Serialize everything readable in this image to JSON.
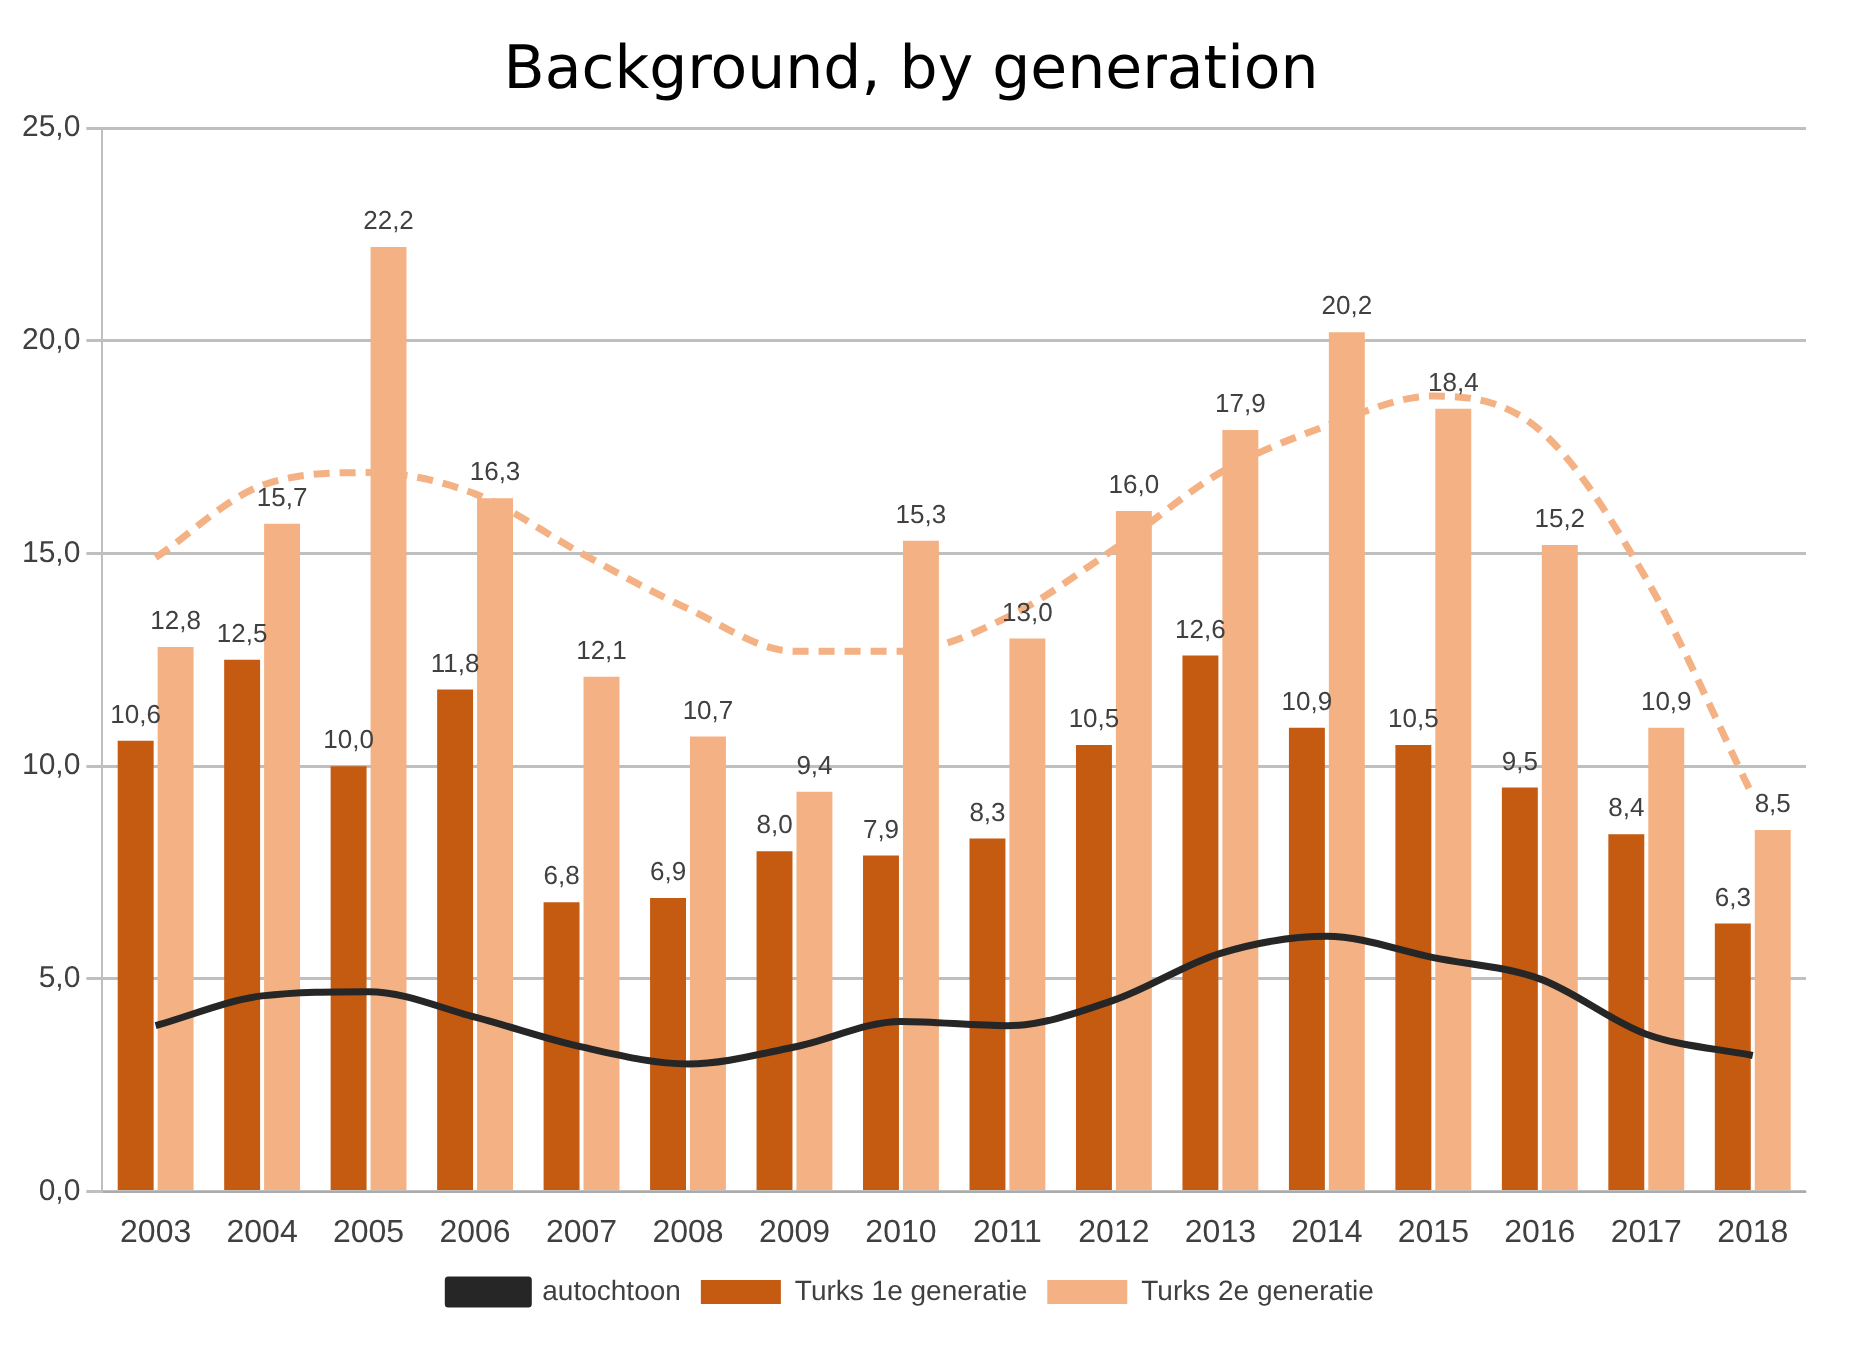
{
  "chart_data": {
    "type": "bar",
    "title": "Background, by generation",
    "categories": [
      "2003",
      "2004",
      "2005",
      "2006",
      "2007",
      "2008",
      "2009",
      "2010",
      "2011",
      "2012",
      "2013",
      "2014",
      "2015",
      "2016",
      "2017",
      "2018"
    ],
    "series": [
      {
        "name": "Turks 1e generatie",
        "color": "#c55a11",
        "values": [
          10.6,
          12.5,
          10.0,
          11.8,
          6.8,
          6.9,
          8.0,
          7.9,
          8.3,
          10.5,
          12.6,
          10.9,
          10.5,
          9.5,
          8.4,
          6.3
        ],
        "value_labels": [
          "10,6",
          "12,5",
          "10,0",
          "11,8",
          "6,8",
          "6,9",
          "8,0",
          "7,9",
          "8,3",
          "10,5",
          "12,6",
          "10,9",
          "10,5",
          "9,5",
          "8,4",
          "6,3"
        ]
      },
      {
        "name": "Turks 2e generatie",
        "color": "#f4b183",
        "values": [
          12.8,
          15.7,
          22.2,
          16.3,
          12.1,
          10.7,
          9.4,
          15.3,
          13.0,
          16.0,
          17.9,
          20.2,
          18.4,
          15.2,
          10.9,
          8.5
        ],
        "value_labels": [
          "12,8",
          "15,7",
          "22,2",
          "16,3",
          "12,1",
          "10,7",
          "9,4",
          "15,3",
          "13,0",
          "16,0",
          "17,9",
          "20,2",
          "18,4",
          "15,2",
          "10,9",
          "8,5"
        ]
      },
      {
        "name": "autochtoon",
        "type": "line",
        "color": "#262626",
        "marker": "none",
        "values": [
          3.9,
          4.6,
          4.7,
          4.1,
          3.4,
          3.0,
          3.4,
          4.0,
          3.9,
          4.5,
          5.6,
          6.0,
          5.5,
          5.0,
          3.7,
          3.2
        ]
      },
      {
        "type": "line",
        "color": "#f4b183",
        "line_style": "dashed",
        "marker": "none",
        "values": [
          14.9,
          16.6,
          16.9,
          16.4,
          15.0,
          13.7,
          12.7,
          12.7,
          13.5,
          15.1,
          16.9,
          18.0,
          18.7,
          17.9,
          14.4,
          9.3
        ]
      }
    ],
    "ylim": [
      0,
      25
    ],
    "yticks": [
      {
        "value": 0,
        "label": "0,0"
      },
      {
        "value": 5,
        "label": "5,0"
      },
      {
        "value": 10,
        "label": "10,0"
      },
      {
        "value": 15,
        "label": "15,0"
      },
      {
        "value": 20,
        "label": "20,0"
      },
      {
        "value": 25,
        "label": "25,0"
      }
    ],
    "grid": "y",
    "legend": "bottom"
  }
}
